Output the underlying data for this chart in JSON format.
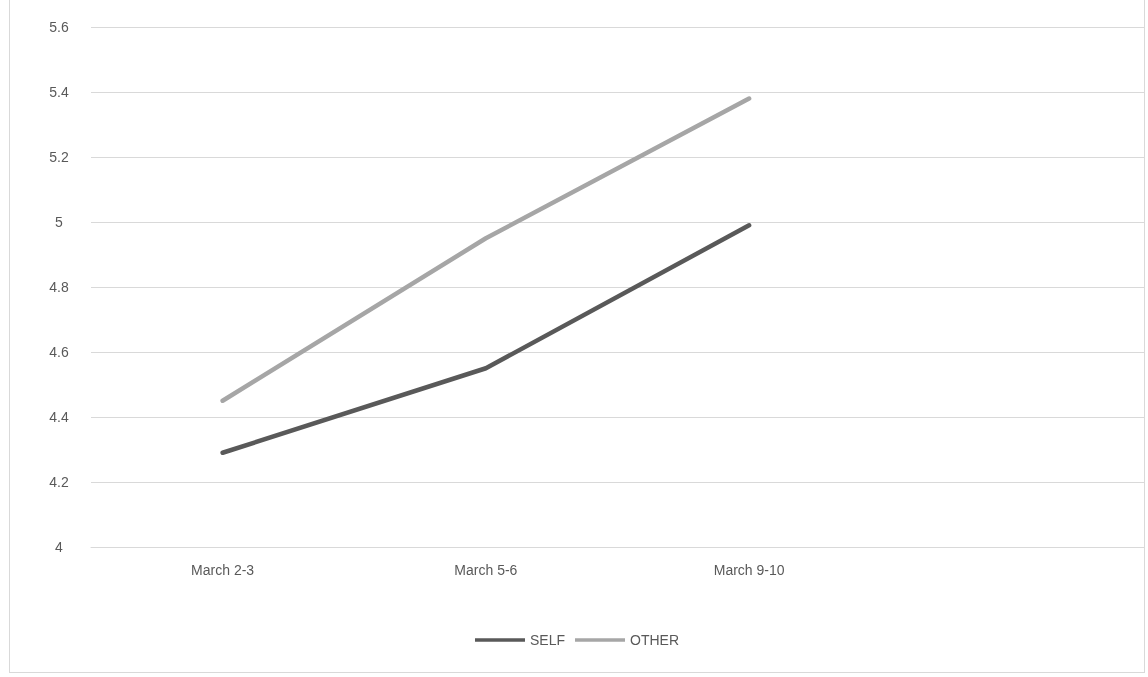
{
  "chart_data": {
    "type": "line",
    "categories": [
      "March 2-3",
      "March 5-6",
      "March 9-10",
      null
    ],
    "series": [
      {
        "name": "SELF",
        "color": "#595959",
        "values": [
          4.29,
          4.55,
          4.99,
          null
        ]
      },
      {
        "name": "OTHER",
        "color": "#a6a6a6",
        "values": [
          4.45,
          4.95,
          5.38,
          null
        ]
      }
    ],
    "ylim": [
      4,
      5.6
    ],
    "yticks": [
      4,
      4.2,
      4.4,
      4.6,
      4.8,
      5,
      5.2,
      5.4,
      5.6
    ],
    "grid": "y",
    "legend": "bottom",
    "marker": "none",
    "line_style": "solid"
  }
}
